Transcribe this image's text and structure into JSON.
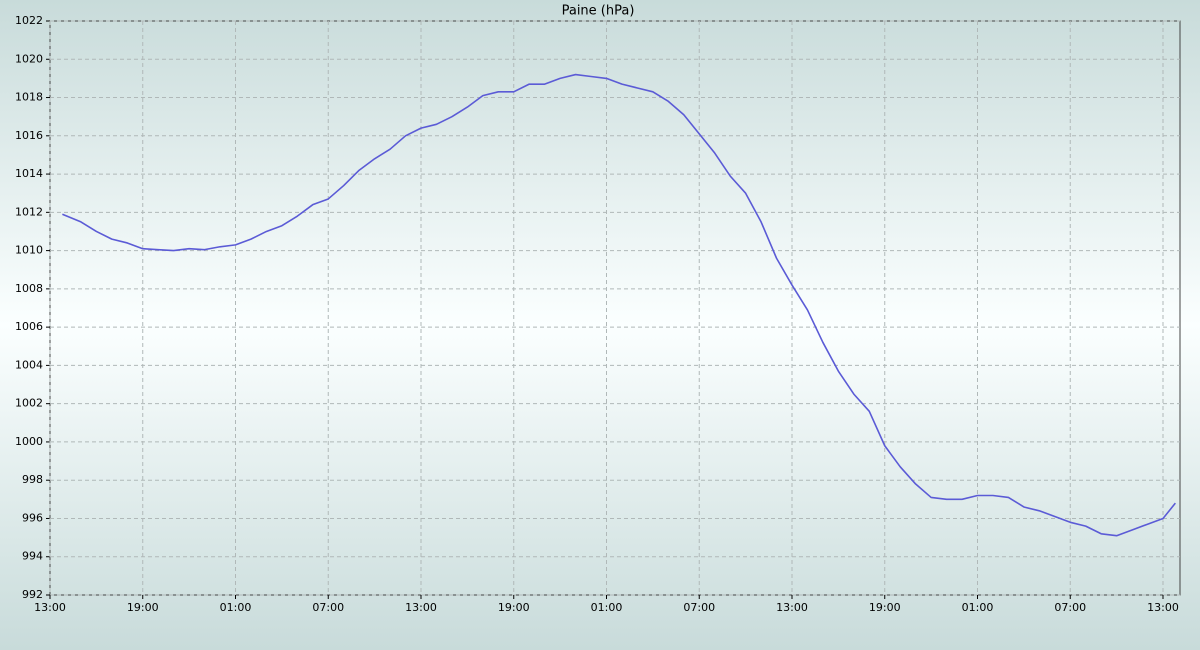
{
  "chart_data": {
    "type": "line",
    "title": "Paine (hPa)",
    "color": "#5b5bd6",
    "grid": true,
    "x": [
      0.8,
      2,
      3,
      4,
      5,
      6,
      7,
      8,
      9,
      10,
      11,
      12,
      13,
      14,
      15,
      16,
      17,
      18,
      19,
      20,
      21,
      22,
      23,
      24,
      25,
      26,
      27,
      28,
      29,
      30,
      31,
      32,
      33,
      34,
      35,
      36,
      37,
      38,
      39,
      40,
      41,
      42,
      43,
      44,
      45,
      46,
      47,
      48,
      49,
      50,
      51,
      52,
      53,
      54,
      55,
      56,
      57,
      58,
      59,
      60,
      61,
      62,
      63,
      64,
      65,
      66,
      67,
      68,
      69,
      70,
      71,
      72,
      72.8
    ],
    "values": [
      1011.9,
      1011.5,
      1011.0,
      1010.6,
      1010.4,
      1010.1,
      1010.05,
      1010.0,
      1010.1,
      1010.05,
      1010.2,
      1010.3,
      1010.6,
      1011.0,
      1011.3,
      1011.8,
      1012.4,
      1012.7,
      1013.4,
      1014.2,
      1014.8,
      1015.3,
      1016.0,
      1016.4,
      1016.6,
      1017.0,
      1017.5,
      1018.1,
      1018.3,
      1018.3,
      1018.7,
      1018.7,
      1019.0,
      1019.2,
      1019.1,
      1019.0,
      1018.7,
      1018.5,
      1018.3,
      1017.8,
      1017.1,
      1016.1,
      1015.1,
      1013.9,
      1013.0,
      1011.5,
      1009.6,
      1008.2,
      1006.9,
      1005.2,
      1003.7,
      1002.5,
      1001.6,
      999.8,
      998.7,
      997.8,
      997.1,
      997.0,
      997.0,
      997.2,
      997.2,
      997.1,
      996.6,
      996.4,
      996.1,
      995.8,
      995.6,
      995.2,
      995.1,
      995.4,
      995.7,
      996.0,
      996.8
    ],
    "xlim": [
      0,
      73.1
    ],
    "xticks": [
      {
        "value": 0,
        "label": "13:00"
      },
      {
        "value": 6,
        "label": "19:00"
      },
      {
        "value": 12,
        "label": "01:00"
      },
      {
        "value": 18,
        "label": "07:00"
      },
      {
        "value": 24,
        "label": "13:00"
      },
      {
        "value": 30,
        "label": "19:00"
      },
      {
        "value": 36,
        "label": "01:00"
      },
      {
        "value": 42,
        "label": "07:00"
      },
      {
        "value": 48,
        "label": "13:00"
      },
      {
        "value": 54,
        "label": "19:00"
      },
      {
        "value": 60,
        "label": "01:00"
      },
      {
        "value": 66,
        "label": "07:00"
      },
      {
        "value": 72,
        "label": "13:00"
      }
    ],
    "ylim": [
      992,
      1022
    ],
    "yticks": [
      992,
      994,
      996,
      998,
      1000,
      1002,
      1004,
      1006,
      1008,
      1010,
      1012,
      1014,
      1016,
      1018,
      1020,
      1022
    ]
  }
}
